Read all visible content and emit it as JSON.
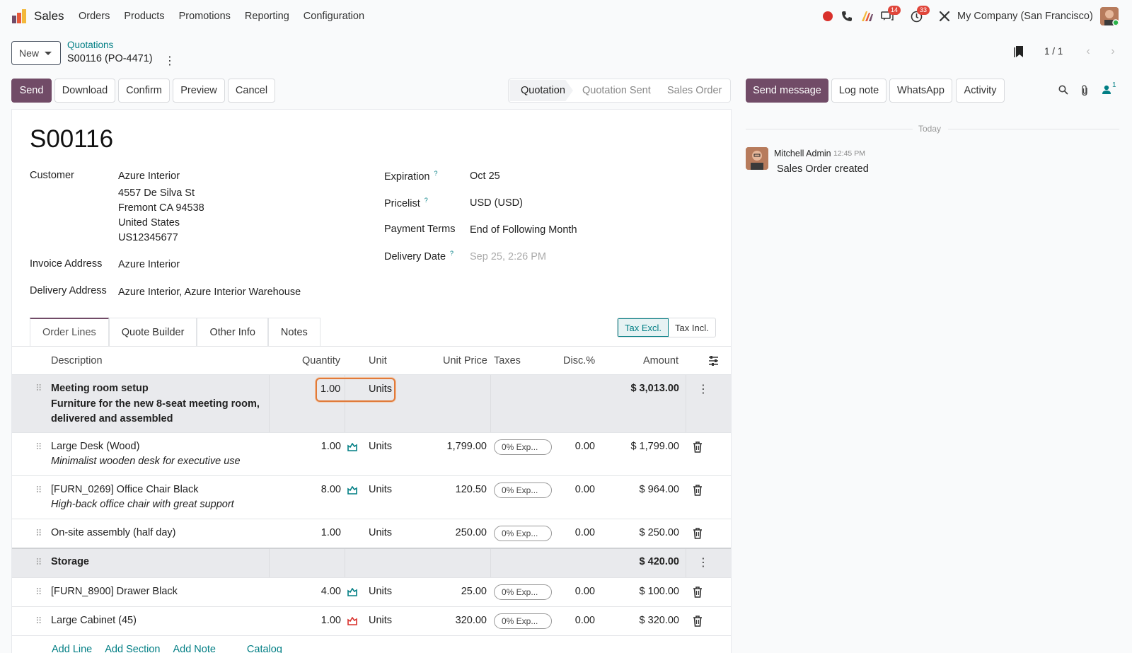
{
  "app": {
    "name": "Sales",
    "menu": [
      "Orders",
      "Products",
      "Promotions",
      "Reporting",
      "Configuration"
    ],
    "company": "My Company (San Francisco)",
    "badges": {
      "messages": "14",
      "activities": "33"
    }
  },
  "control": {
    "new_label": "New",
    "breadcrumb_parent": "Quotations",
    "breadcrumb_current": "S00116 (PO-4471)",
    "pager": "1 / 1"
  },
  "actions": {
    "send": "Send",
    "download": "Download",
    "confirm": "Confirm",
    "preview": "Preview",
    "cancel": "Cancel"
  },
  "statusbar": [
    "Quotation",
    "Quotation Sent",
    "Sales Order"
  ],
  "form": {
    "title": "S00116",
    "customer_label": "Customer",
    "customer_lines": [
      "Azure Interior",
      "4557 De Silva St",
      "Fremont CA 94538",
      "United States",
      "US12345677"
    ],
    "invoice_label": "Invoice Address",
    "invoice_value": "Azure Interior",
    "delivery_label": "Delivery Address",
    "delivery_value": "Azure Interior, Azure Interior Warehouse",
    "expiration_label": "Expiration",
    "expiration_value": "Oct 25",
    "pricelist_label": "Pricelist",
    "pricelist_value": "USD (USD)",
    "payment_terms_label": "Payment Terms",
    "payment_terms_value": "End of Following Month",
    "delivery_date_label": "Delivery Date",
    "delivery_date_placeholder": "Sep 25, 2:26 PM",
    "help_mark": "?"
  },
  "tabs": [
    "Order Lines",
    "Quote Builder",
    "Other Info",
    "Notes"
  ],
  "tax_toggle": {
    "excl": "Tax Excl.",
    "incl": "Tax Incl."
  },
  "table": {
    "headers": {
      "description": "Description",
      "quantity": "Quantity",
      "unit": "Unit",
      "unit_price": "Unit Price",
      "taxes": "Taxes",
      "disc": "Disc.%",
      "amount": "Amount"
    },
    "rows": [
      {
        "type": "section",
        "name": "Meeting room setup",
        "line2": "Furniture for the new 8-seat meeting room,",
        "line3": "delivered and assembled",
        "qty": "1.00",
        "unit": "Units",
        "amount": "$ 3,013.00"
      },
      {
        "type": "product",
        "name": "Large Desk (Wood)",
        "desc": "Minimalist wooden desk for executive use",
        "qty": "1.00",
        "unit": "Units",
        "price": "1,799.00",
        "tax": "0% Exp...",
        "disc": "0.00",
        "amount": "$ 1,799.00",
        "stock": "ok"
      },
      {
        "type": "product",
        "name": "[FURN_0269] Office Chair Black",
        "desc": "High-back office chair with great support",
        "qty": "8.00",
        "unit": "Units",
        "price": "120.50",
        "tax": "0% Exp...",
        "disc": "0.00",
        "amount": "$ 964.00",
        "stock": "ok"
      },
      {
        "type": "product",
        "name": "On-site assembly (half day)",
        "desc": "",
        "qty": "1.00",
        "unit": "Units",
        "price": "250.00",
        "tax": "0% Exp...",
        "disc": "0.00",
        "amount": "$ 250.00",
        "stock": "none"
      },
      {
        "type": "section",
        "name": "Storage",
        "amount": "$ 420.00"
      },
      {
        "type": "product",
        "name": "[FURN_8900] Drawer Black",
        "desc": "",
        "qty": "4.00",
        "unit": "Units",
        "price": "25.00",
        "tax": "0% Exp...",
        "disc": "0.00",
        "amount": "$ 100.00",
        "stock": "ok"
      },
      {
        "type": "product",
        "name": "Large Cabinet (45)",
        "desc": "",
        "qty": "1.00",
        "unit": "Units",
        "price": "320.00",
        "tax": "0% Exp...",
        "disc": "0.00",
        "amount": "$ 320.00",
        "stock": "low"
      }
    ],
    "add_links": [
      "Add Line",
      "Add Section",
      "Add Note",
      "Catalog"
    ]
  },
  "chatter": {
    "send_message": "Send message",
    "log_note": "Log note",
    "whatsapp": "WhatsApp",
    "activity": "Activity",
    "followers_count": "1",
    "today": "Today",
    "message": {
      "author": "Mitchell Admin",
      "time": "12:45 PM",
      "body": "Sales Order created"
    }
  },
  "colors": {
    "brand": "#714b67",
    "link": "#017e84",
    "badge": "#e0453a",
    "focus": "#e07a3a"
  }
}
